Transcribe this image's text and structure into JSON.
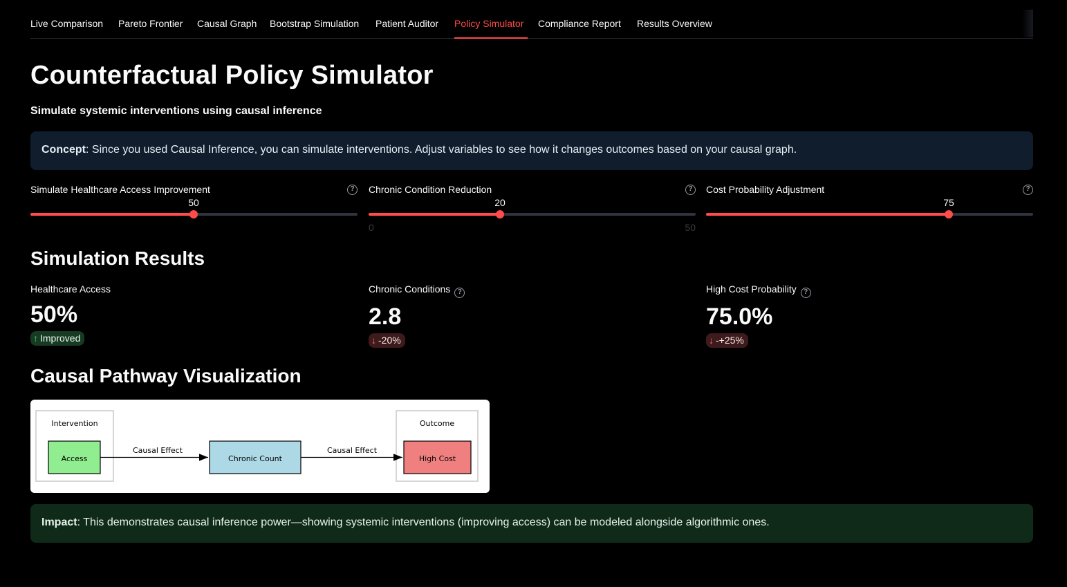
{
  "tabs": [
    {
      "label": "Live Comparison",
      "active": false
    },
    {
      "label": "Pareto Frontier",
      "active": false
    },
    {
      "label": "Causal Graph",
      "active": false
    },
    {
      "label": "Bootstrap Simulation",
      "active": false
    },
    {
      "label": "Patient Auditor",
      "active": false
    },
    {
      "label": "Policy Simulator",
      "active": true
    },
    {
      "label": "Compliance Report",
      "active": false
    },
    {
      "label": "Results Overview",
      "active": false
    }
  ],
  "page": {
    "title": "Counterfactual Policy Simulator",
    "subtitle": "Simulate systemic interventions using causal inference"
  },
  "concept": {
    "label": "Concept",
    "text": ": Since you used Causal Inference, you can simulate interventions. Adjust variables to see how it changes outcomes based on your causal graph."
  },
  "sliders": [
    {
      "label": "Simulate Healthcare Access Improvement",
      "value": "50",
      "min": 0,
      "max": 100,
      "fraction": 0.5
    },
    {
      "label": "Chronic Condition Reduction",
      "value": "20",
      "min": "0",
      "max": "50",
      "fraction": 0.4
    },
    {
      "label": "Cost Probability Adjustment",
      "value": "75",
      "min": 0,
      "max": 100,
      "fraction": 0.75
    }
  ],
  "results": {
    "heading": "Simulation Results",
    "metrics": [
      {
        "label": "Healthcare Access",
        "value": "50%",
        "delta": "Improved",
        "direction": "up"
      },
      {
        "label": "Chronic Conditions",
        "value": "2.8",
        "delta": "-20%",
        "direction": "down"
      },
      {
        "label": "High Cost Probability",
        "value": "75.0%",
        "delta": "-+25%",
        "direction": "down"
      }
    ]
  },
  "pathway": {
    "heading": "Causal Pathway Visualization",
    "intervention_label": "Intervention",
    "outcome_label": "Outcome",
    "nodes": {
      "access": "Access",
      "chronic": "Chronic Count",
      "cost": "High Cost"
    },
    "edge_labels": [
      "Causal Effect",
      "Causal Effect"
    ],
    "colors": {
      "access": "#90ee90",
      "chronic": "#add8e6",
      "cost": "#f08080"
    }
  },
  "impact": {
    "label": "Impact",
    "text": ": This demonstrates causal inference power—showing systemic interventions (improving access) can be modeled alongside algorithmic ones."
  },
  "colors": {
    "accent": "#ff4b4b",
    "background": "#000000",
    "info_bg": "#0f1d2c",
    "success_bg": "#102a1a"
  }
}
